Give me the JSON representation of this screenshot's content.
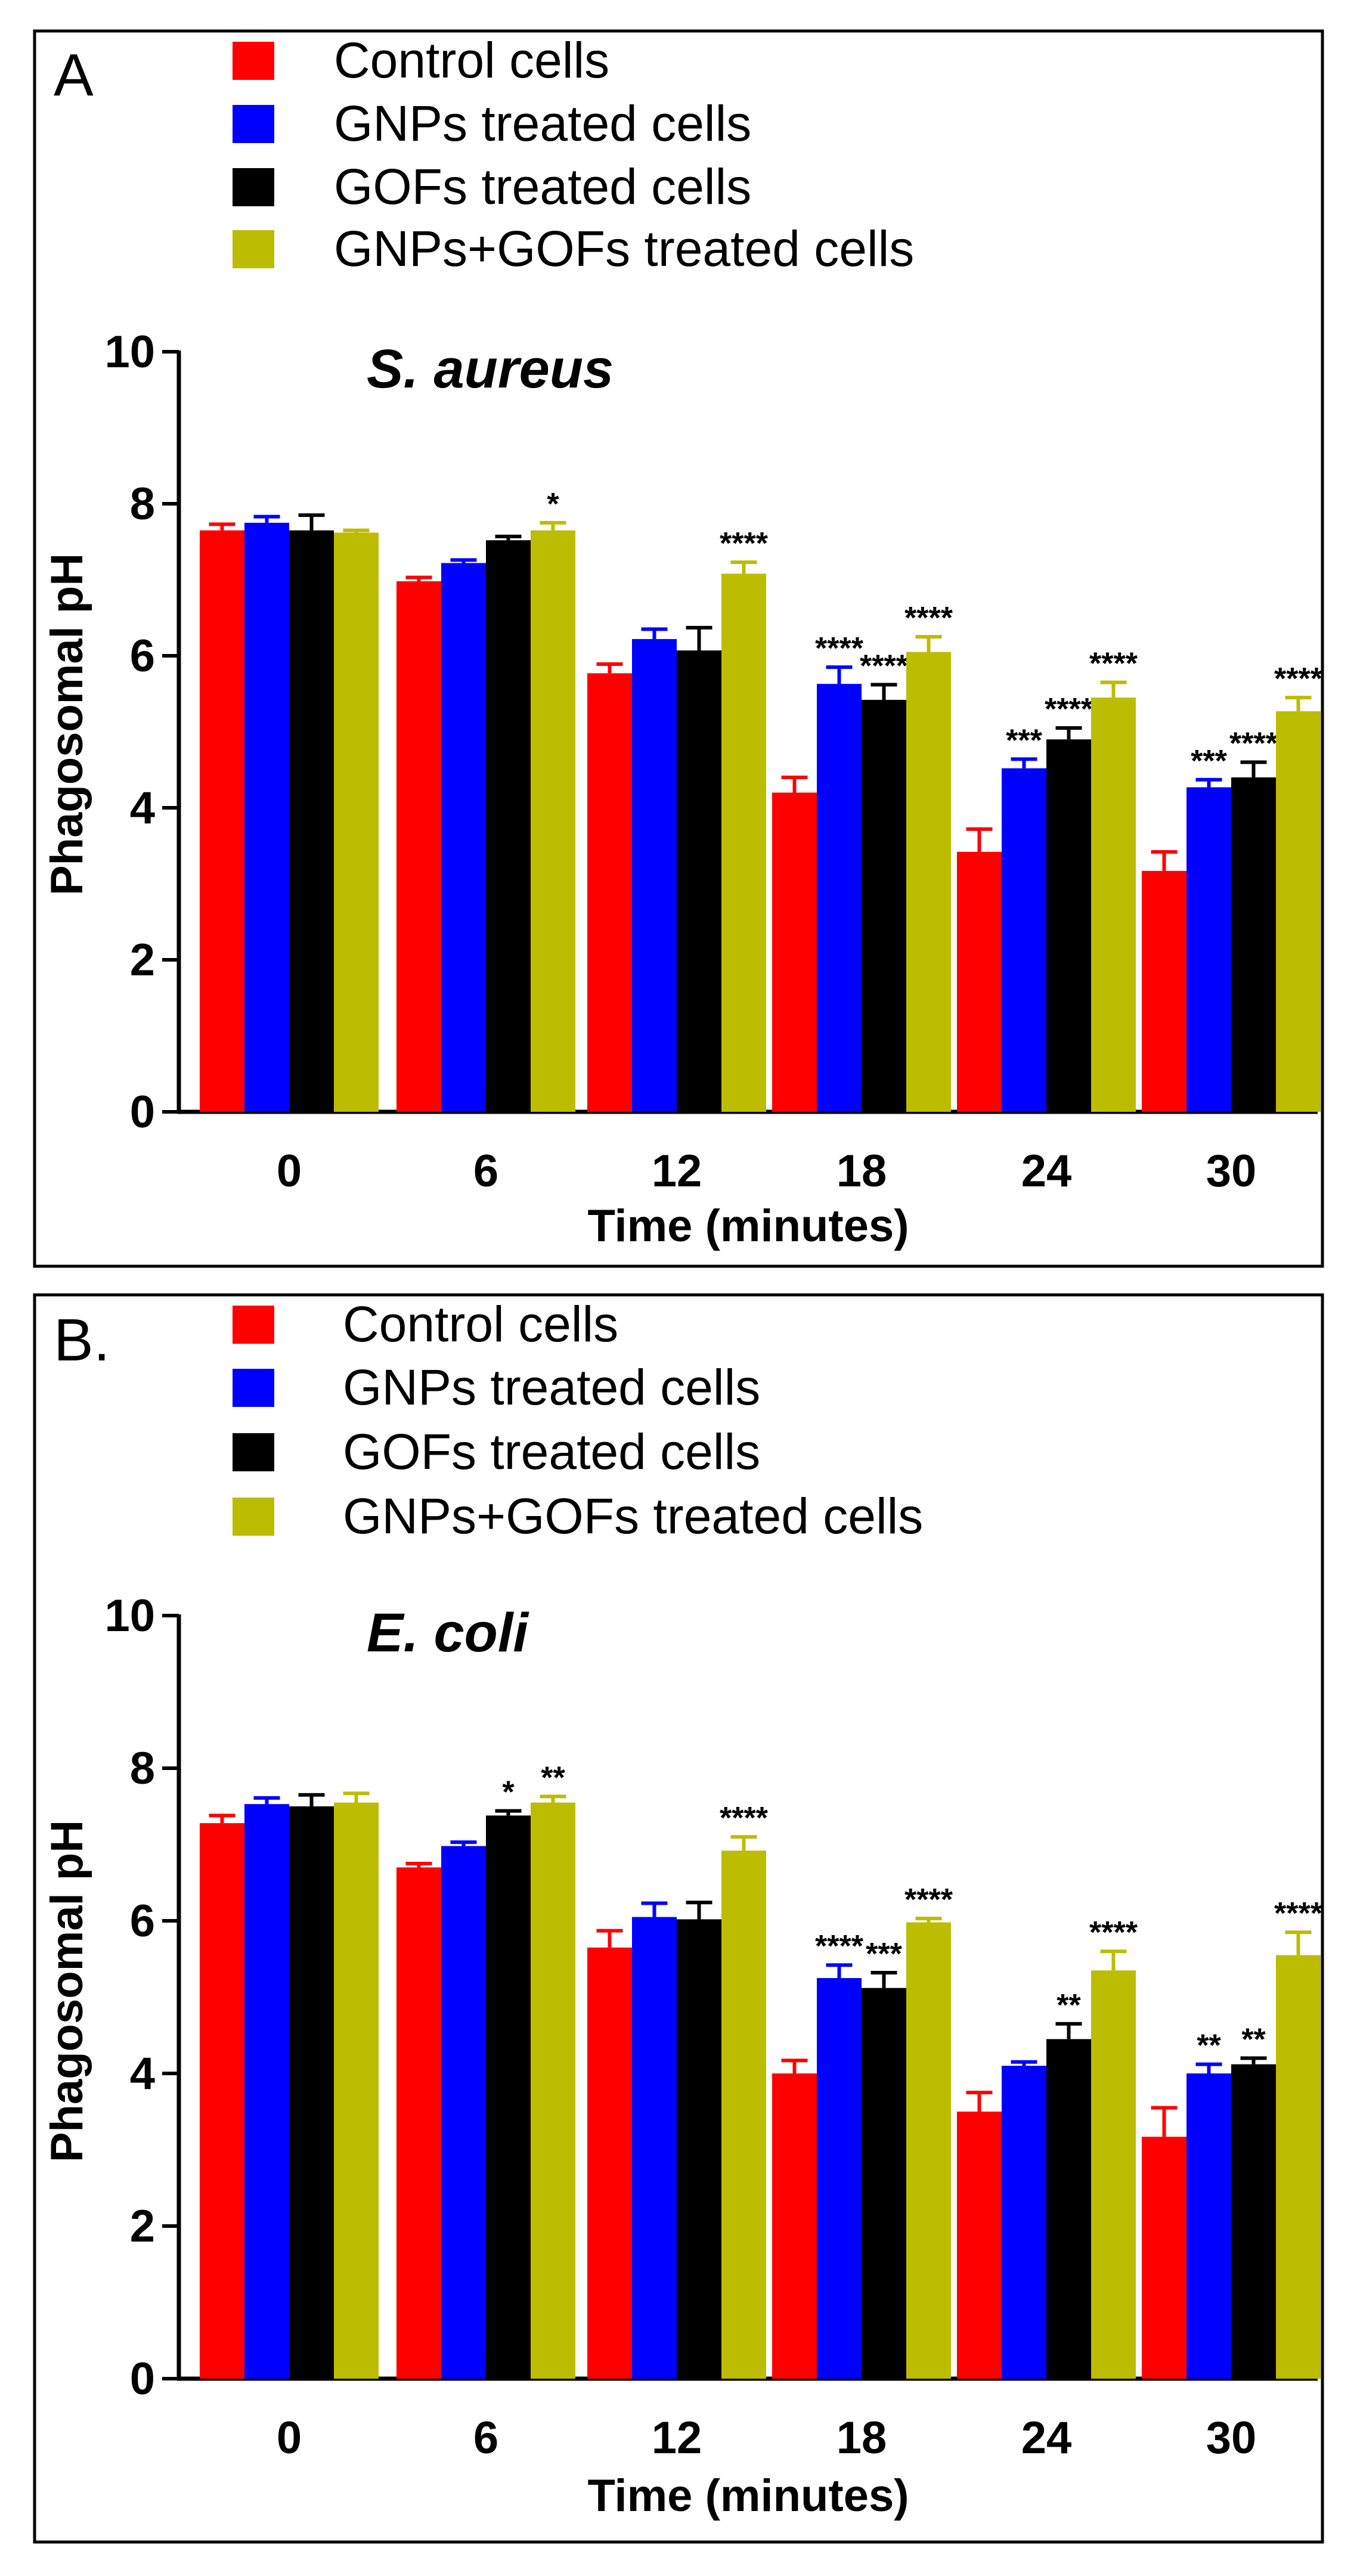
{
  "chart_data": [
    {
      "type": "bar",
      "panel_label": "A",
      "title": "S. aureus",
      "xlabel": "Time (minutes)",
      "ylabel": "Phagosomal pH",
      "ylim": [
        0,
        10
      ],
      "yticks": [
        "0",
        "2",
        "4",
        "6",
        "8",
        "10"
      ],
      "categories": [
        "0",
        "6",
        "12",
        "18",
        "24",
        "30"
      ],
      "legend_position": "top-left",
      "series": [
        {
          "name": "Control cells",
          "color": "#ff0000",
          "values": [
            7.65,
            6.98,
            5.77,
            4.2,
            3.42,
            3.17
          ],
          "errors": [
            0.08,
            0.05,
            0.12,
            0.2,
            0.3,
            0.25
          ],
          "annotations": [
            "",
            "",
            "",
            "",
            "",
            ""
          ]
        },
        {
          "name": "GNPs treated cells",
          "color": "#0000ff",
          "values": [
            7.75,
            7.22,
            6.22,
            5.63,
            4.52,
            4.27
          ],
          "errors": [
            0.08,
            0.04,
            0.13,
            0.22,
            0.12,
            0.1
          ],
          "annotations": [
            "",
            "",
            "",
            "****",
            "***",
            "***"
          ]
        },
        {
          "name": "GOFs treated cells",
          "color": "#000000",
          "values": [
            7.65,
            7.52,
            6.07,
            5.42,
            4.9,
            4.4
          ],
          "errors": [
            0.2,
            0.05,
            0.3,
            0.2,
            0.15,
            0.2
          ],
          "annotations": [
            "",
            "",
            "",
            "****",
            "****",
            "****"
          ]
        },
        {
          "name": "GNPs+GOFs treated cells",
          "color": "#bcbc00",
          "values": [
            7.62,
            7.65,
            7.08,
            6.05,
            5.45,
            5.27
          ],
          "errors": [
            0.03,
            0.1,
            0.15,
            0.2,
            0.2,
            0.18
          ],
          "annotations": [
            "",
            "*",
            "****",
            "****",
            "****",
            "****"
          ]
        }
      ]
    },
    {
      "type": "bar",
      "panel_label": "B.",
      "title": "E. coli",
      "xlabel": "Time (minutes)",
      "ylabel": "Phagosomal pH",
      "ylim": [
        0,
        10
      ],
      "yticks": [
        "0",
        "2",
        "4",
        "6",
        "8",
        "10"
      ],
      "categories": [
        "0",
        "6",
        "12",
        "18",
        "24",
        "30"
      ],
      "legend_position": "top-left",
      "series": [
        {
          "name": "Control cells",
          "color": "#ff0000",
          "values": [
            7.28,
            6.7,
            5.65,
            4.0,
            3.5,
            3.17
          ],
          "errors": [
            0.1,
            0.05,
            0.22,
            0.17,
            0.25,
            0.38
          ],
          "annotations": [
            "",
            "",
            "",
            "",
            "",
            ""
          ]
        },
        {
          "name": "GNPs treated cells",
          "color": "#0000ff",
          "values": [
            7.53,
            6.98,
            6.05,
            5.25,
            4.1,
            4.0
          ],
          "errors": [
            0.08,
            0.05,
            0.18,
            0.17,
            0.05,
            0.12
          ],
          "annotations": [
            "",
            "",
            "",
            "****",
            "",
            "**"
          ]
        },
        {
          "name": "GOFs treated cells",
          "color": "#000000",
          "values": [
            7.5,
            7.38,
            6.02,
            5.12,
            4.45,
            4.12
          ],
          "errors": [
            0.15,
            0.06,
            0.22,
            0.2,
            0.2,
            0.08
          ],
          "annotations": [
            "",
            "*",
            "",
            "***",
            "**",
            "**"
          ]
        },
        {
          "name": "GNPs+GOFs treated cells",
          "color": "#bcbc00",
          "values": [
            7.55,
            7.55,
            6.92,
            5.98,
            5.35,
            5.55
          ],
          "errors": [
            0.12,
            0.08,
            0.18,
            0.05,
            0.25,
            0.3
          ],
          "annotations": [
            "",
            "**",
            "****",
            "****",
            "****",
            "****"
          ]
        }
      ]
    }
  ]
}
